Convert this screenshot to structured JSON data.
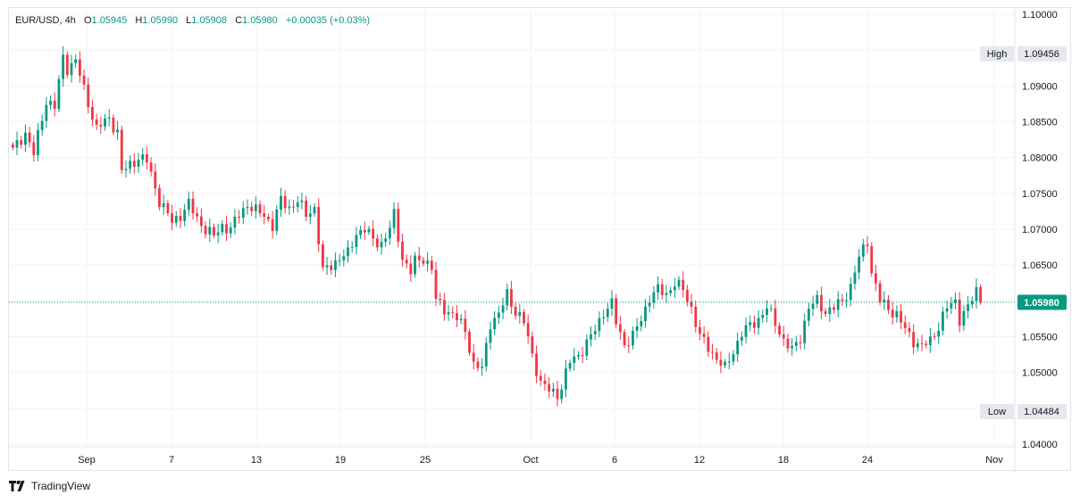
{
  "legend": {
    "symbol": "EUR/USD",
    "interval": "4h",
    "open_label": "O",
    "open": "1.05945",
    "high_label": "H",
    "high": "1.05990",
    "low_label": "L",
    "low": "1.05908",
    "close_label": "C",
    "close": "1.05980",
    "change": "+0.00035",
    "change_pct": "(+0.03%)"
  },
  "branding": {
    "text": "TradingView",
    "icon": "tradingview-logo-icon"
  },
  "colors": {
    "up": "#089981",
    "down": "#f23645",
    "grid": "#f0f3fa",
    "last_price_bg": "#089981"
  },
  "chart_data": {
    "type": "candlestick",
    "title": "EUR/USD, 4h",
    "ylim": [
      1.04,
      1.1
    ],
    "y_ticks": [
      "1.10000",
      "1.09500",
      "1.09000",
      "1.08500",
      "1.08000",
      "1.07500",
      "1.07000",
      "1.06500",
      "1.06000",
      "1.05500",
      "1.05000",
      "1.04500",
      "1.04000"
    ],
    "x_ticks": [
      "Sep",
      "7",
      "13",
      "19",
      "25",
      "Oct",
      "6",
      "12",
      "18",
      "24",
      "Nov"
    ],
    "high_marker": {
      "label": "High",
      "value": "1.09456"
    },
    "low_marker": {
      "label": "Low",
      "value": "1.04484"
    },
    "last_price": {
      "value": "1.05980"
    },
    "path": [
      [
        0,
        1.081
      ],
      [
        3,
        1.0835
      ],
      [
        5,
        1.0805
      ],
      [
        8,
        1.088
      ],
      [
        10,
        1.087
      ],
      [
        12,
        1.094
      ],
      [
        13,
        1.0925
      ],
      [
        15,
        1.0935
      ],
      [
        17,
        1.0895
      ],
      [
        20,
        1.084
      ],
      [
        23,
        1.0855
      ],
      [
        25,
        1.0835
      ],
      [
        26,
        1.078
      ],
      [
        30,
        1.08
      ],
      [
        32,
        1.0795
      ],
      [
        35,
        1.074
      ],
      [
        38,
        1.071
      ],
      [
        40,
        1.072
      ],
      [
        42,
        1.0735
      ],
      [
        44,
        1.0715
      ],
      [
        46,
        1.07
      ],
      [
        48,
        1.069
      ],
      [
        50,
        1.0705
      ],
      [
        52,
        1.07
      ],
      [
        54,
        1.072
      ],
      [
        56,
        1.0735
      ],
      [
        58,
        1.0725
      ],
      [
        60,
        1.072
      ],
      [
        62,
        1.0705
      ],
      [
        64,
        1.074
      ],
      [
        66,
        1.073
      ],
      [
        68,
        1.074
      ],
      [
        70,
        1.072
      ],
      [
        72,
        1.073
      ],
      [
        74,
        1.064
      ],
      [
        76,
        1.065
      ],
      [
        78,
        1.066
      ],
      [
        80,
        1.0665
      ],
      [
        82,
        1.0695
      ],
      [
        84,
        1.07
      ],
      [
        86,
        1.0685
      ],
      [
        88,
        1.068
      ],
      [
        90,
        1.07
      ],
      [
        91,
        1.072
      ],
      [
        93,
        1.066
      ],
      [
        95,
        1.064
      ],
      [
        96,
        1.0655
      ],
      [
        98,
        1.066
      ],
      [
        100,
        1.0645
      ],
      [
        101,
        1.06
      ],
      [
        104,
        1.0585
      ],
      [
        106,
        1.0575
      ],
      [
        108,
        1.056
      ],
      [
        110,
        1.051
      ],
      [
        112,
        1.0505
      ],
      [
        114,
        1.057
      ],
      [
        116,
        1.058
      ],
      [
        118,
        1.061
      ],
      [
        120,
        1.0585
      ],
      [
        122,
        1.057
      ],
      [
        124,
        1.0525
      ],
      [
        126,
        1.0485
      ],
      [
        128,
        1.0475
      ],
      [
        130,
        1.047
      ],
      [
        131,
        1.048
      ],
      [
        133,
        1.0515
      ],
      [
        135,
        1.0525
      ],
      [
        137,
        1.054
      ],
      [
        139,
        1.056
      ],
      [
        141,
        1.0585
      ],
      [
        143,
        1.0595
      ],
      [
        144,
        1.057
      ],
      [
        146,
        1.054
      ],
      [
        148,
        1.055
      ],
      [
        150,
        1.0575
      ],
      [
        152,
        1.0605
      ],
      [
        154,
        1.0615
      ],
      [
        156,
        1.061
      ],
      [
        158,
        1.0625
      ],
      [
        160,
        1.0615
      ],
      [
        162,
        1.059
      ],
      [
        164,
        1.055
      ],
      [
        166,
        1.0535
      ],
      [
        168,
        1.052
      ],
      [
        170,
        1.0505
      ],
      [
        172,
        1.053
      ],
      [
        174,
        1.0555
      ],
      [
        176,
        1.0565
      ],
      [
        178,
        1.0575
      ],
      [
        180,
        1.059
      ],
      [
        182,
        1.057
      ],
      [
        184,
        1.0545
      ],
      [
        186,
        1.053
      ],
      [
        188,
        1.055
      ],
      [
        190,
        1.059
      ],
      [
        192,
        1.06
      ],
      [
        194,
        1.0585
      ],
      [
        196,
        1.059
      ],
      [
        198,
        1.06
      ],
      [
        200,
        1.062
      ],
      [
        202,
        1.066
      ],
      [
        204,
        1.0685
      ],
      [
        205,
        1.064
      ],
      [
        207,
        1.06
      ],
      [
        209,
        1.059
      ],
      [
        211,
        1.058
      ],
      [
        213,
        1.056
      ],
      [
        215,
        1.0545
      ],
      [
        217,
        1.0535
      ],
      [
        219,
        1.0545
      ],
      [
        221,
        1.0565
      ],
      [
        223,
        1.059
      ],
      [
        225,
        1.06
      ],
      [
        226,
        1.0575
      ],
      [
        228,
        1.059
      ],
      [
        230,
        1.0615
      ],
      [
        231,
        1.0595
      ]
    ]
  }
}
